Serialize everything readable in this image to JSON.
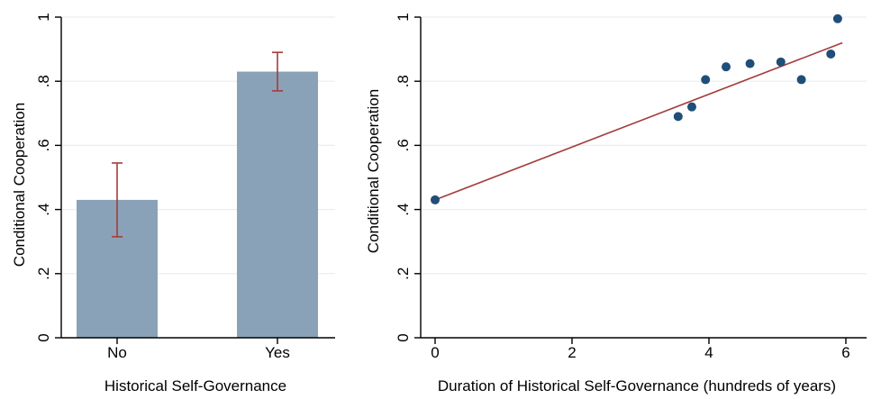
{
  "colors": {
    "bar_fill": "#8aa2b7",
    "error_bar": "#a33c3c",
    "point": "#1f4e79",
    "fit_line": "#a33c3c",
    "grid": "#e9eef1"
  },
  "chart_data": [
    {
      "type": "bar",
      "title": "",
      "xlabel": "Historical Self-Governance",
      "ylabel": "Conditional Cooperation",
      "categories": [
        "No",
        "Yes"
      ],
      "values": [
        0.43,
        0.83
      ],
      "error_low": [
        0.315,
        0.77
      ],
      "error_high": [
        0.545,
        0.89
      ],
      "ylim": [
        0,
        1
      ],
      "yticks": [
        0,
        0.2,
        0.4,
        0.6,
        0.8,
        1
      ],
      "ytick_labels": [
        "0",
        ".2",
        ".4",
        ".6",
        ".8",
        "1"
      ],
      "grid": true,
      "legend": "none"
    },
    {
      "type": "scatter",
      "title": "",
      "xlabel": "Duration of Historical Self-Governance (hundreds of years)",
      "ylabel": "Conditional Cooperation",
      "points": [
        {
          "x": 0.0,
          "y": 0.43
        },
        {
          "x": 3.55,
          "y": 0.69
        },
        {
          "x": 3.75,
          "y": 0.72
        },
        {
          "x": 3.95,
          "y": 0.805
        },
        {
          "x": 4.25,
          "y": 0.845
        },
        {
          "x": 4.6,
          "y": 0.855
        },
        {
          "x": 5.05,
          "y": 0.86
        },
        {
          "x": 5.35,
          "y": 0.805
        },
        {
          "x": 5.78,
          "y": 0.885
        },
        {
          "x": 5.88,
          "y": 0.995
        }
      ],
      "fit_line": {
        "x": [
          0,
          5.95
        ],
        "y": [
          0.43,
          0.92
        ]
      },
      "xlim": [
        0,
        6
      ],
      "xticks": [
        0,
        2,
        4,
        6
      ],
      "xtick_labels": [
        "0",
        "2",
        "4",
        "6"
      ],
      "ylim": [
        0,
        1
      ],
      "yticks": [
        0,
        0.2,
        0.4,
        0.6,
        0.8,
        1
      ],
      "ytick_labels": [
        "0",
        ".2",
        ".4",
        ".6",
        ".8",
        "1"
      ],
      "grid": true,
      "legend": "none"
    }
  ]
}
